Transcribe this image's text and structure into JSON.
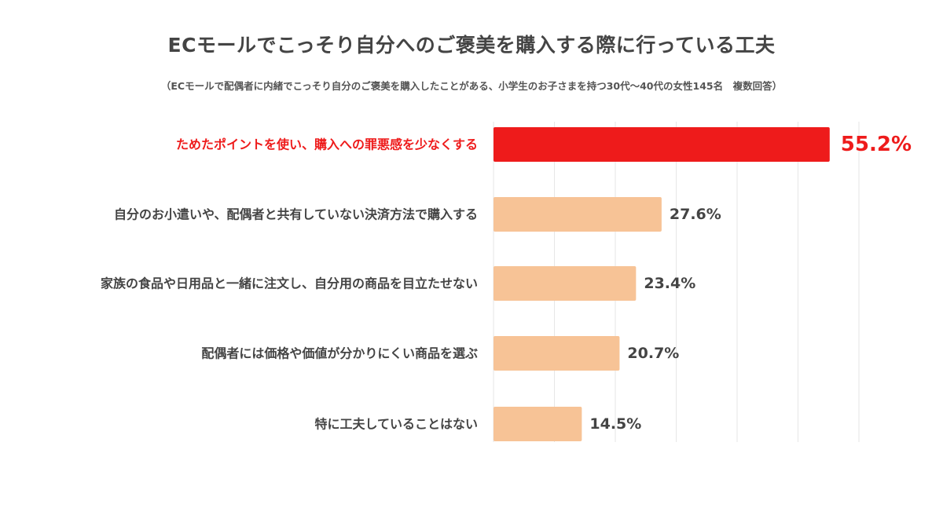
{
  "title": "ECモールでこっそり自分へのご褒美を購入する際に行っている工夫",
  "subtitle": "（ECモールで配偶者に内緒でこっそり自分のご褒美を購入したことがある、小学生のお子さまを持つ30代〜40代の女性145名　複数回答）",
  "colors": {
    "highlight": "#ee1b1b",
    "bar": "#f7c396",
    "label": "#444444",
    "grid": "#e6e6e6"
  },
  "chart_data": {
    "type": "bar",
    "orientation": "horizontal",
    "categories": [
      "ためたポイントを使い、購入への罪悪感を少なくする",
      "自分のお小遣いや、配偶者と共有していない決済方法で購入する",
      "家族の食品や日用品と一緒に注文し、自分用の商品を目立たせない",
      "配偶者には価格や価値が分かりにくい商品を選ぶ",
      "特に工夫していることはない"
    ],
    "values": [
      55.2,
      27.6,
      23.4,
      20.7,
      14.5
    ],
    "value_labels": [
      "55.2%",
      "27.6%",
      "23.4%",
      "20.7%",
      "14.5%"
    ],
    "highlight_index": 0,
    "xlim": [
      0,
      60
    ],
    "grid": true,
    "legend": "none"
  }
}
